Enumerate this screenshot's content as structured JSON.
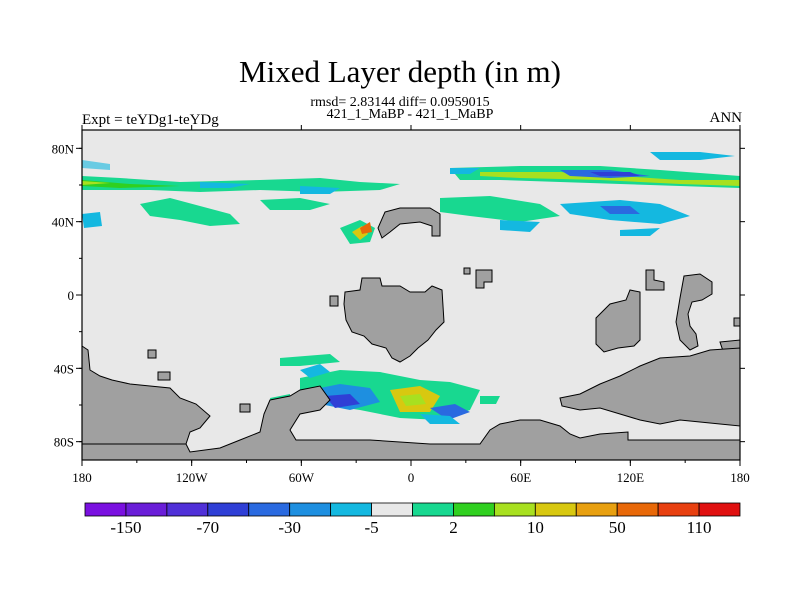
{
  "title": "Mixed Layer depth (in m)",
  "subtitle_line1": "rmsd= 2.83144 diff= 0.0959015",
  "subtitle_line2": "421_1_MaBP - 421_1_MaBP",
  "left_label": "Expt = teYDg1-teYDg",
  "right_label": "ANN",
  "chart_data": {
    "type": "heatmap",
    "x_axis": {
      "range": [
        -180,
        180
      ],
      "tick_values": [
        -180,
        -120,
        -60,
        0,
        60,
        120,
        180
      ],
      "tick_labels": [
        "180",
        "120W",
        "60W",
        "0",
        "60E",
        "120E",
        "180"
      ]
    },
    "y_axis": {
      "range": [
        -90,
        90
      ],
      "tick_values": [
        80,
        40,
        0,
        -40,
        -80
      ],
      "tick_labels": [
        "80N",
        "40N",
        "0",
        "40S",
        "80S"
      ]
    },
    "colorbar": {
      "colors": [
        "#7a10e0",
        "#6a1ed8",
        "#5030d8",
        "#2f3fd6",
        "#2a6ae0",
        "#1e8fe0",
        "#14b8e0",
        "#e8e8e8",
        "#18d890",
        "#30d020",
        "#a8e020",
        "#d8c810",
        "#e8a010",
        "#e86808",
        "#e84010",
        "#e01010"
      ],
      "labels": [
        "-150",
        "-70",
        "-30",
        "-5",
        "2",
        "10",
        "50",
        "110"
      ]
    },
    "land_color": "#a0a0a0",
    "ocean_color": "#e8e8e8"
  }
}
